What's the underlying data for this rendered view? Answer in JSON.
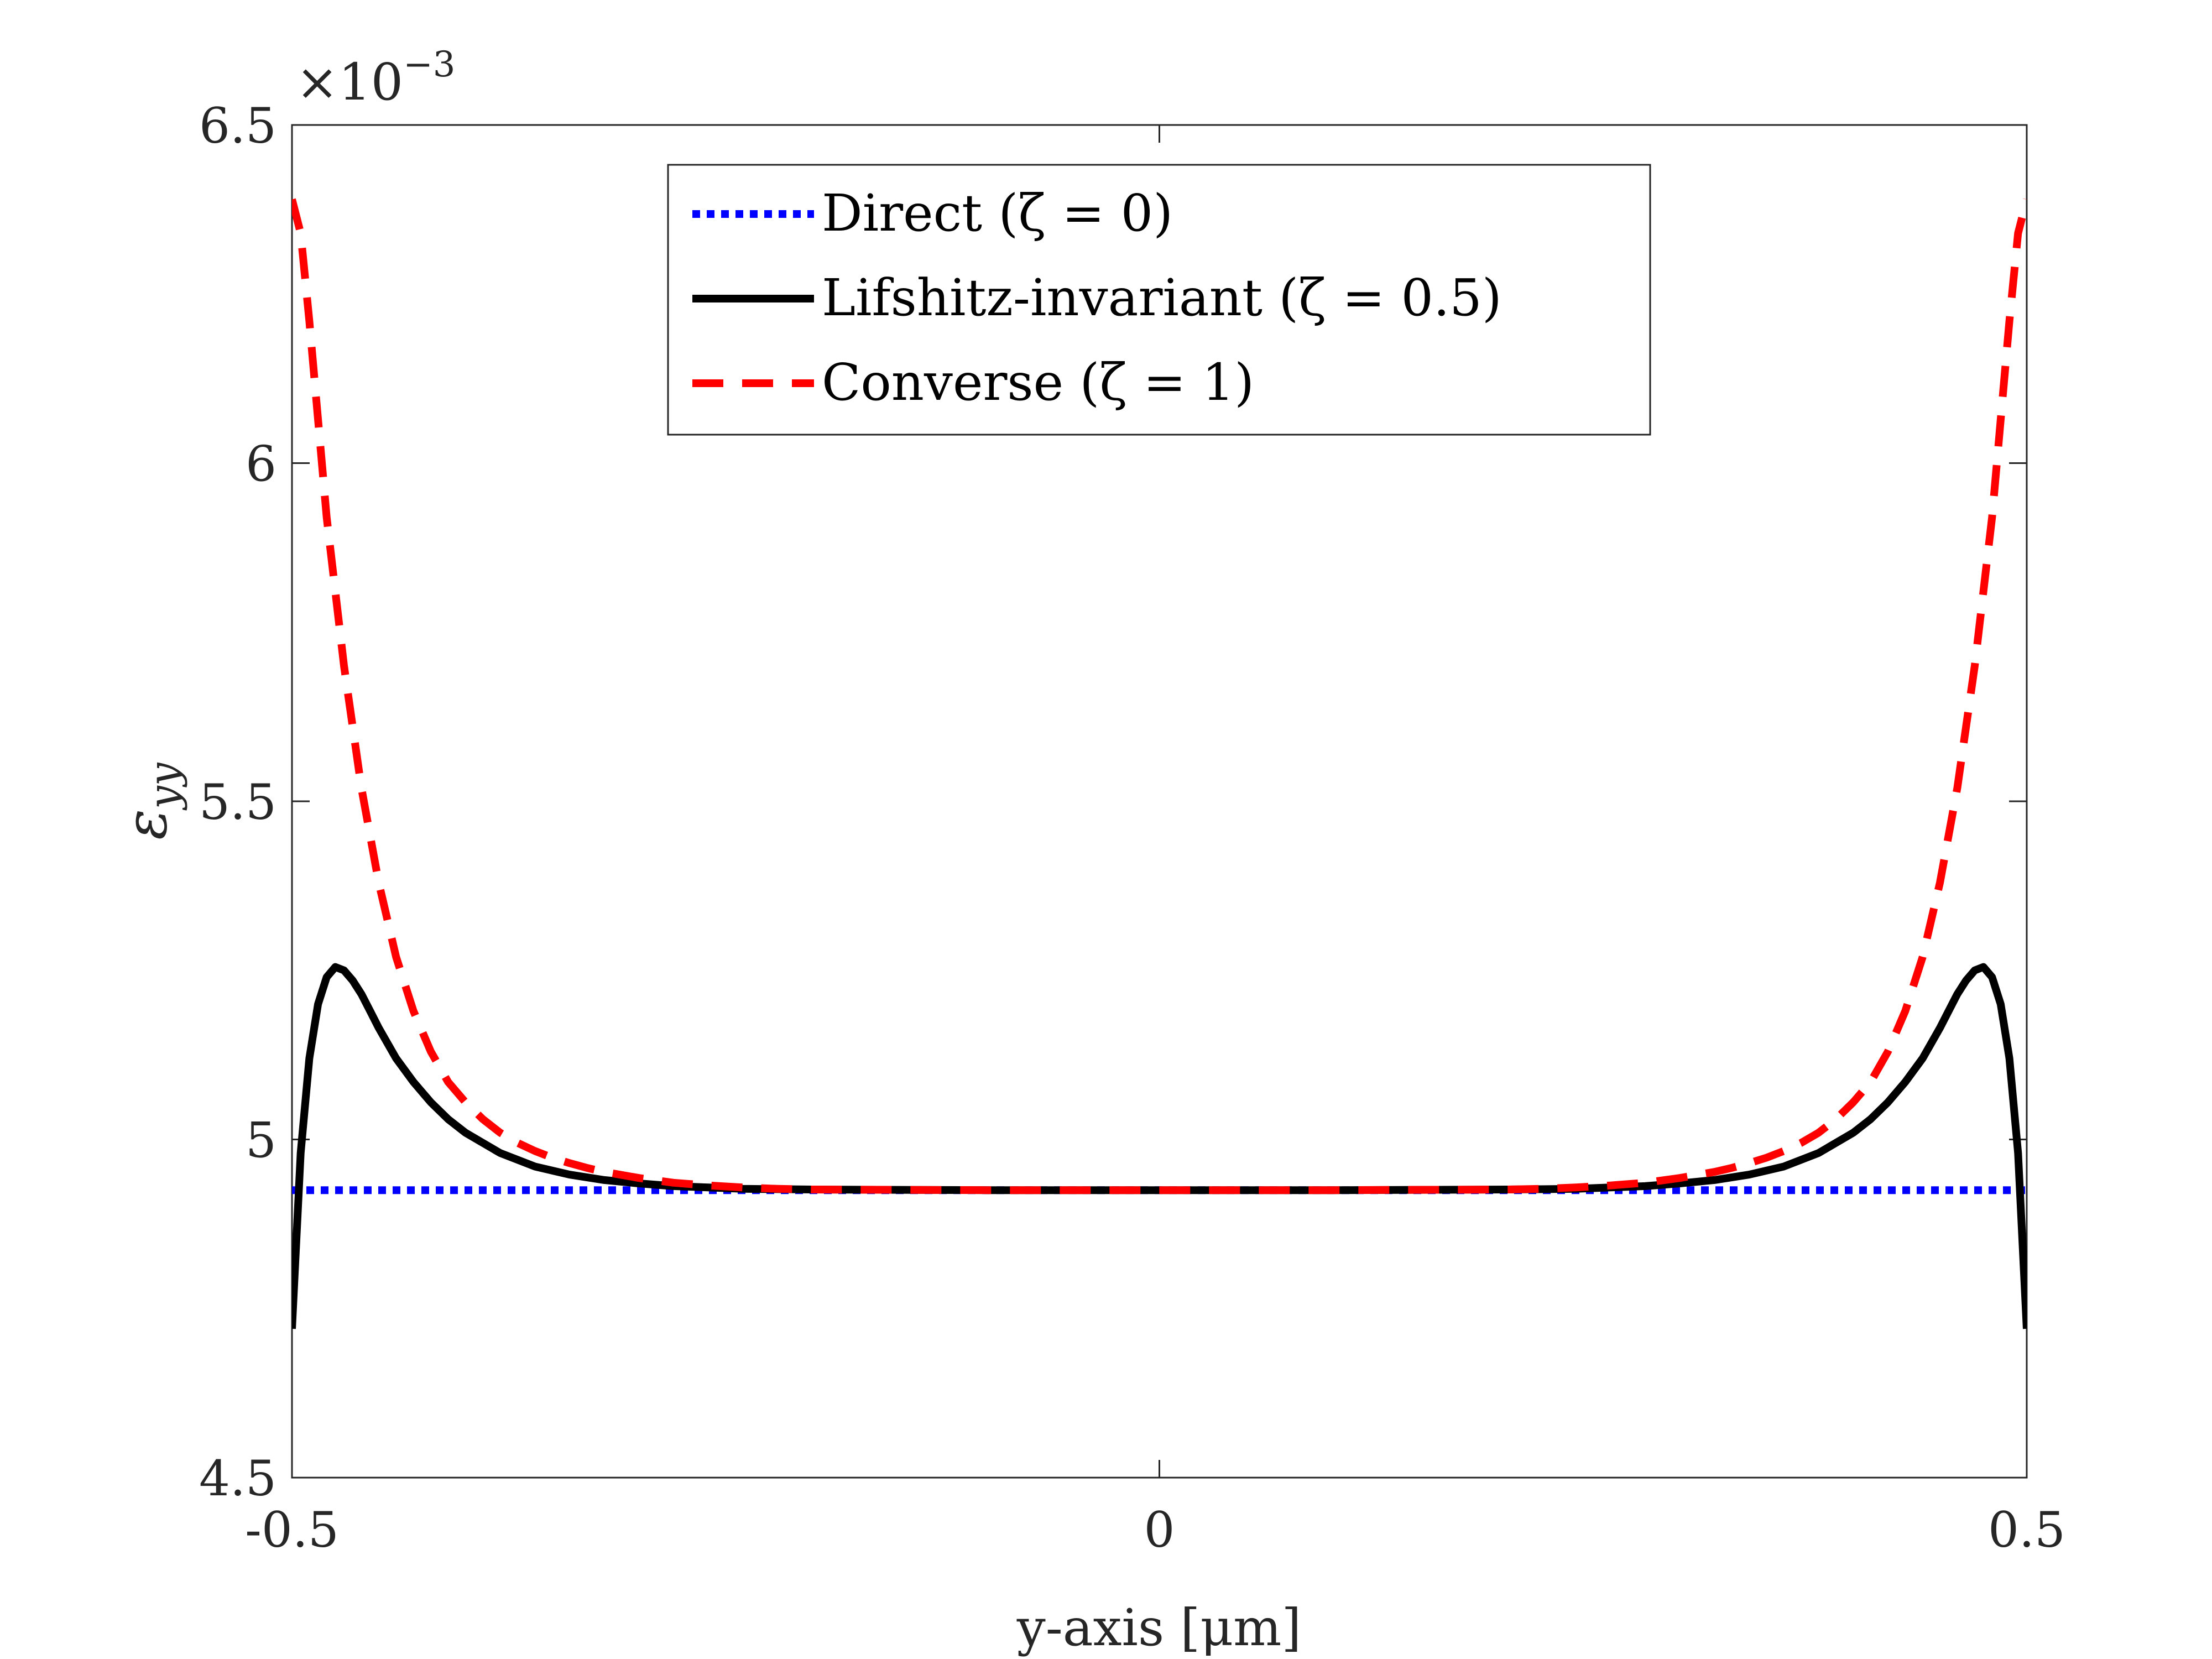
{
  "chart_data": {
    "type": "line",
    "xlabel": "y-axis [μm]",
    "ylabel": "ε_yy",
    "ylabel_main": "ε",
    "ylabel_sub": "yy",
    "exponent_label": "×10",
    "exponent_power": "−3",
    "xlim": [
      -0.5,
      0.5
    ],
    "ylim": [
      4.5,
      6.5
    ],
    "x_ticks": [
      -0.5,
      0,
      0.5
    ],
    "x_tick_labels": [
      "-0.5",
      "0",
      "0.5"
    ],
    "y_ticks": [
      4.5,
      5,
      5.5,
      6,
      6.5
    ],
    "y_tick_labels": [
      "4.5",
      "5",
      "5.5",
      "6",
      "6.5"
    ],
    "legend_position": "top-center",
    "series": [
      {
        "name": "Direct (ζ = 0)",
        "color": "#0000ff",
        "style": "dotted",
        "x": [
          -0.5,
          -0.25,
          0,
          0.25,
          0.5
        ],
        "y": [
          4.925,
          4.925,
          4.925,
          4.925,
          4.925
        ]
      },
      {
        "name": "Lifshitz-invariant (ζ = 0.5)",
        "color": "#000000",
        "style": "solid",
        "x": [
          -0.5,
          -0.495,
          -0.49,
          -0.485,
          -0.48,
          -0.475,
          -0.47,
          -0.465,
          -0.46,
          -0.455,
          -0.45,
          -0.44,
          -0.43,
          -0.42,
          -0.41,
          -0.4,
          -0.38,
          -0.36,
          -0.34,
          -0.32,
          -0.3,
          -0.28,
          -0.26,
          -0.24,
          -0.2,
          -0.1,
          0,
          0.1,
          0.2,
          0.24,
          0.26,
          0.28,
          0.3,
          0.32,
          0.34,
          0.36,
          0.38,
          0.4,
          0.41,
          0.42,
          0.43,
          0.44,
          0.45,
          0.455,
          0.46,
          0.465,
          0.47,
          0.475,
          0.48,
          0.485,
          0.49,
          0.495,
          0.5
        ],
        "y": [
          4.72,
          4.98,
          5.12,
          5.2,
          5.24,
          5.255,
          5.25,
          5.235,
          5.215,
          5.19,
          5.165,
          5.12,
          5.085,
          5.055,
          5.03,
          5.01,
          4.98,
          4.96,
          4.948,
          4.94,
          4.935,
          4.931,
          4.929,
          4.927,
          4.926,
          4.925,
          4.925,
          4.925,
          4.926,
          4.927,
          4.929,
          4.931,
          4.935,
          4.94,
          4.948,
          4.96,
          4.98,
          5.01,
          5.03,
          5.055,
          5.085,
          5.12,
          5.165,
          5.19,
          5.215,
          5.235,
          5.25,
          5.255,
          5.24,
          5.2,
          5.12,
          4.98,
          4.72
        ]
      },
      {
        "name": "Converse (ζ = 1)",
        "color": "#ff0000",
        "style": "dashed",
        "x": [
          -0.5,
          -0.495,
          -0.49,
          -0.48,
          -0.47,
          -0.46,
          -0.45,
          -0.44,
          -0.43,
          -0.42,
          -0.41,
          -0.4,
          -0.39,
          -0.38,
          -0.37,
          -0.36,
          -0.35,
          -0.34,
          -0.33,
          -0.32,
          -0.3,
          -0.28,
          -0.26,
          -0.24,
          -0.22,
          -0.2,
          -0.1,
          0,
          0.1,
          0.2,
          0.22,
          0.24,
          0.26,
          0.28,
          0.3,
          0.32,
          0.33,
          0.34,
          0.35,
          0.36,
          0.37,
          0.38,
          0.39,
          0.4,
          0.41,
          0.42,
          0.43,
          0.44,
          0.45,
          0.46,
          0.47,
          0.48,
          0.49,
          0.495,
          0.5
        ],
        "y": [
          6.39,
          6.34,
          6.21,
          5.92,
          5.7,
          5.52,
          5.38,
          5.27,
          5.19,
          5.13,
          5.085,
          5.055,
          5.03,
          5.01,
          4.995,
          4.983,
          4.973,
          4.965,
          4.958,
          4.952,
          4.943,
          4.936,
          4.932,
          4.929,
          4.927,
          4.926,
          4.925,
          4.925,
          4.925,
          4.926,
          4.927,
          4.929,
          4.932,
          4.936,
          4.943,
          4.952,
          4.958,
          4.965,
          4.973,
          4.983,
          4.995,
          5.01,
          5.03,
          5.055,
          5.085,
          5.13,
          5.19,
          5.27,
          5.38,
          5.52,
          5.7,
          5.92,
          6.21,
          6.34,
          6.39
        ]
      }
    ]
  }
}
